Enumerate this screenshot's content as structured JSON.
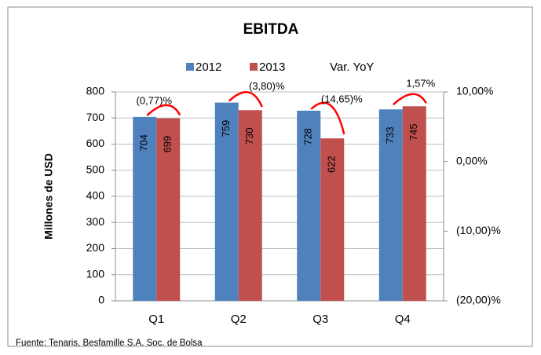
{
  "chart_data": {
    "type": "bar",
    "title": "EBITDA",
    "y_label": "Millones de USD",
    "footer": "Fuente: Tenaris, Besfamille S.A. Soc. de Bolsa",
    "categories": [
      "Q1",
      "Q2",
      "Q3",
      "Q4"
    ],
    "series": [
      {
        "name": "2012",
        "color": "#4f81bd",
        "values": [
          704,
          759,
          728,
          733
        ]
      },
      {
        "name": "2013",
        "color": "#c0504d",
        "values": [
          699,
          730,
          622,
          745
        ]
      },
      {
        "name": "Var. YoY",
        "color": "#ff0000",
        "axis": "y2",
        "values": [
          -0.77,
          -3.8,
          -14.65,
          1.57
        ],
        "value_labels": [
          "(0,77)%",
          "(3,80)%",
          "(14,65)%",
          "1,57%"
        ]
      }
    ],
    "ylim": [
      0,
      800
    ],
    "yticks": [
      0,
      100,
      200,
      300,
      400,
      500,
      600,
      700,
      800
    ],
    "y2lim": [
      -20,
      10
    ],
    "y2ticks": [
      {
        "value": 10,
        "label": "10,00%"
      },
      {
        "value": 0,
        "label": "0,00%"
      },
      {
        "value": -10,
        "label": "(10,00)%"
      },
      {
        "value": -20,
        "label": "(20,00)%"
      }
    ],
    "grid": true
  }
}
